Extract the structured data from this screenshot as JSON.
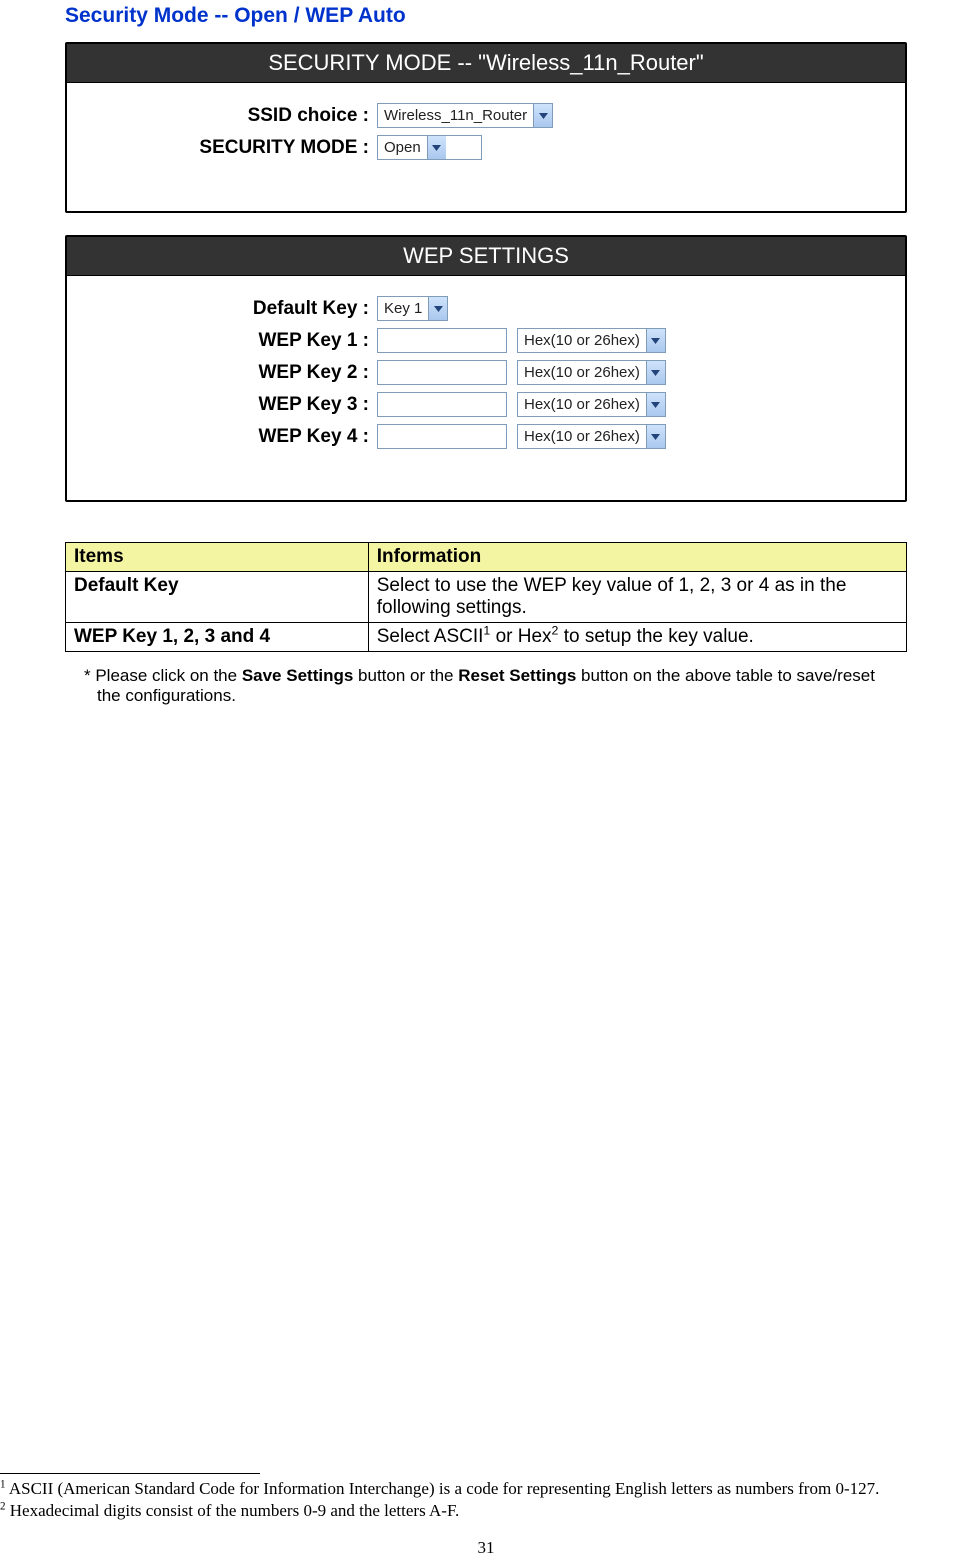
{
  "sectionTitle": "Security Mode -- Open / WEP Auto",
  "panel1": {
    "header": "SECURITY MODE -- \"Wireless_11n_Router\"",
    "rows": {
      "ssidLabel": "SSID choice :",
      "ssidValue": "Wireless_11n_Router",
      "ssidSelectWidth": 170,
      "modeLabel": "SECURITY MODE :",
      "modeValue": "Open",
      "modeSelectWidth": 105
    }
  },
  "panel2": {
    "header": "WEP SETTINGS",
    "defaultKeyLabel": "Default Key :",
    "defaultKeyValue": "Key 1",
    "defaultKeySelectWidth": 62,
    "keyInputWidth": 130,
    "hexSelectWidth": 140,
    "keys": [
      {
        "label": "WEP Key 1 :",
        "value": "",
        "format": "Hex(10 or 26hex)"
      },
      {
        "label": "WEP Key 2 :",
        "value": "",
        "format": "Hex(10 or 26hex)"
      },
      {
        "label": "WEP Key 3 :",
        "value": "",
        "format": "Hex(10 or 26hex)"
      },
      {
        "label": "WEP Key 4 :",
        "value": "",
        "format": "Hex(10 or 26hex)"
      }
    ]
  },
  "itemsTable": {
    "header": {
      "c1": "Items",
      "c2": "Information"
    },
    "rows": [
      {
        "item": "Default Key",
        "info": "Select to use the WEP key value of 1, 2, 3 or 4 as in the following settings."
      },
      {
        "item": "WEP Key 1, 2, 3 and 4",
        "info_pre": "Select ASCII",
        "sup1": "1",
        "info_mid": " or Hex",
        "sup2": "2",
        "info_post": " to setup the key value."
      }
    ]
  },
  "note": {
    "prefix": "* Please click on the ",
    "bold1": "Save Settings",
    "mid": " button or the ",
    "bold2": "Reset Settings",
    "suffix": " button on the above table to save/reset the configurations."
  },
  "footnotes": {
    "f1sup": "1",
    "f1text": " ASCII (American Standard Code for Information Interchange) is a code for representing English letters as numbers from 0-127.",
    "f2sup": "2",
    "f2text": " Hexadecimal digits consist of the numbers 0-9 and the letters A-F."
  },
  "pageNumber": "31",
  "colors": {
    "title": "#0033cc",
    "panelHeaderBg": "#333333",
    "panelHeaderFg": "#ffffff",
    "tableHeaderBg": "#f4f5a3",
    "selectBorder": "#7f9db9"
  }
}
